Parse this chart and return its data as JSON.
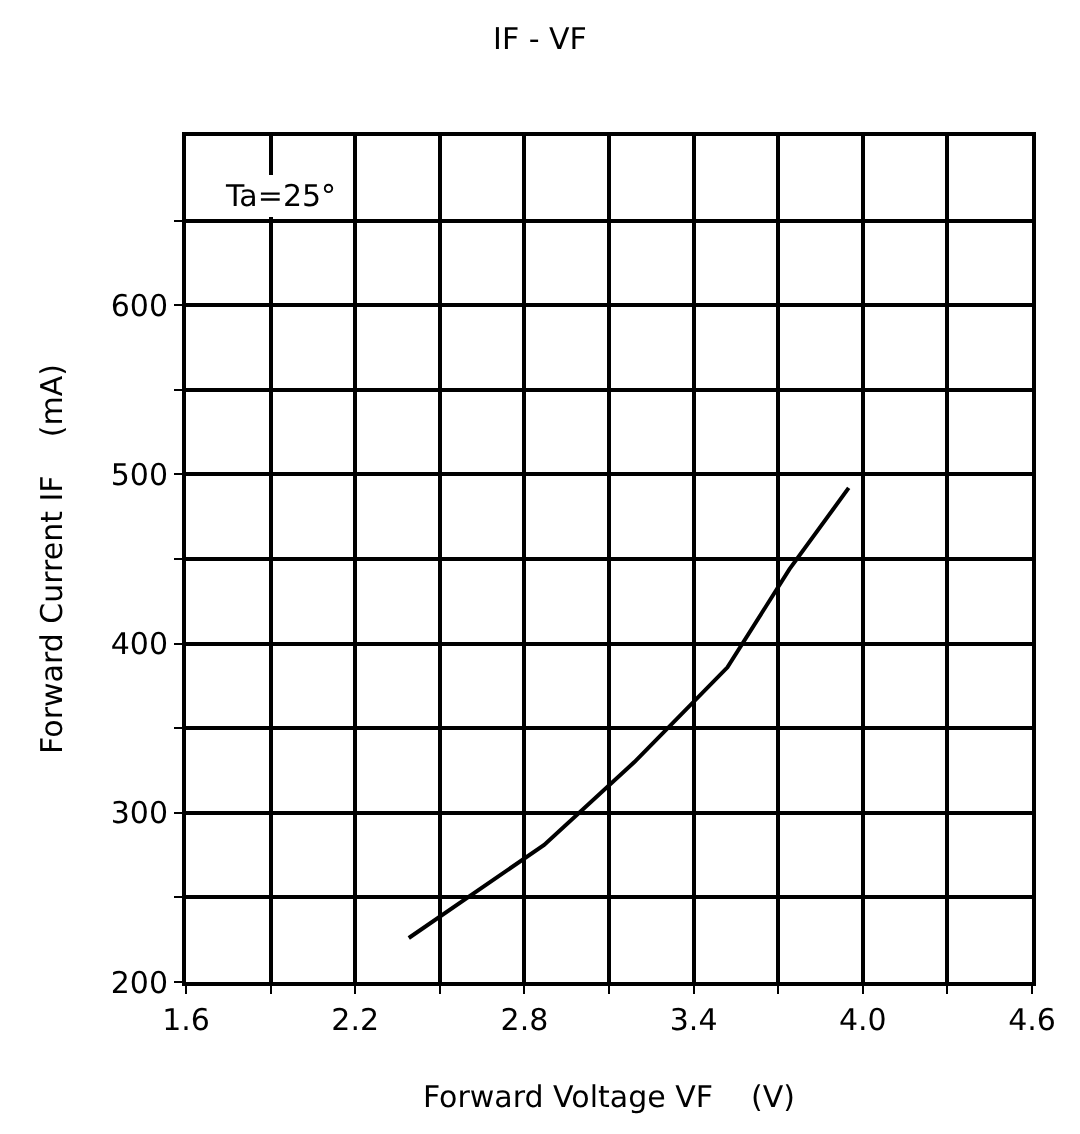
{
  "chart_data": {
    "type": "line",
    "title": "IF - VF",
    "xlabel": "Forward Voltage VF    (V)",
    "ylabel": "Forward Current IF    (mA)",
    "x": [
      2.39,
      2.87,
      3.19,
      3.52,
      3.74,
      3.95
    ],
    "series": [
      {
        "color": "#000000",
        "values": [
          226,
          281,
          330,
          386,
          444,
          492
        ]
      }
    ],
    "xlim": [
      1.6,
      4.6
    ],
    "ylim": [
      200,
      700
    ],
    "xticks": [
      1.6,
      {
        "value": 1.9,
        "label": null
      },
      2.2,
      {
        "value": 2.5,
        "label": null
      },
      2.8,
      {
        "value": 3.1,
        "label": null
      },
      3.4,
      {
        "value": 3.7,
        "label": null
      },
      {
        "value": 4.0,
        "label": "4.0"
      },
      {
        "value": 4.3,
        "label": null
      },
      4.6
    ],
    "yticks": [
      200,
      {
        "value": 250,
        "label": null
      },
      300,
      {
        "value": 350,
        "label": null
      },
      400,
      {
        "value": 450,
        "label": null
      },
      500,
      {
        "value": 550,
        "label": null
      },
      600,
      {
        "value": 650,
        "label": null
      }
    ],
    "annotations": [
      "Ta=25°"
    ],
    "grid": true,
    "legend": false,
    "marker": "none",
    "line_style": "solid"
  }
}
